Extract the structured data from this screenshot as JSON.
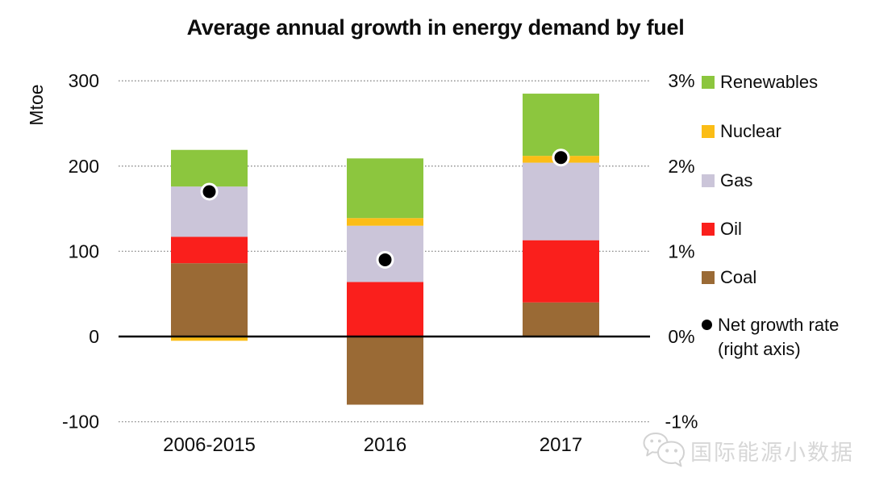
{
  "title": "Average annual growth in energy demand by fuel",
  "watermark": {
    "icon": "wechat-logo",
    "text": "国际能源小数据"
  },
  "chart_data": {
    "type": "bar",
    "subtype": "stacked-column-with-net-growth-points",
    "title": "Average annual growth in energy demand by fuel",
    "categories": [
      "2006-2015",
      "2016",
      "2017"
    ],
    "stack_order_bottom_to_top": [
      "Coal",
      "Oil",
      "Gas",
      "Nuclear",
      "Renewables"
    ],
    "series": [
      {
        "name": "Coal",
        "color": "#9A6A35",
        "values": [
          86,
          -80,
          40
        ]
      },
      {
        "name": "Oil",
        "color": "#FA1F1C",
        "values": [
          31,
          64,
          73
        ]
      },
      {
        "name": "Gas",
        "color": "#CBC5D9",
        "values": [
          59,
          66,
          91
        ]
      },
      {
        "name": "Nuclear",
        "color": "#FBBD16",
        "values": [
          -5,
          9,
          8
        ]
      },
      {
        "name": "Renewables",
        "color": "#8CC63E",
        "values": [
          43,
          70,
          73
        ]
      }
    ],
    "point_series": {
      "name": "Net growth rate (right axis)",
      "color": "#000000",
      "values_percent": [
        1.7,
        0.9,
        2.1
      ]
    },
    "left_axis": {
      "label": "Mtoe",
      "ticks": [
        300,
        200,
        100,
        0,
        -100
      ],
      "min": -100,
      "max": 300
    },
    "right_axis": {
      "ticks": [
        "3%",
        "2%",
        "1%",
        "0%",
        "-1%"
      ],
      "tick_values": [
        3,
        2,
        1,
        0,
        -1
      ],
      "min": -1,
      "max": 3
    },
    "legend": [
      {
        "label": "Renewables",
        "marker": "square",
        "color": "#8CC63E"
      },
      {
        "label": "Nuclear",
        "marker": "square",
        "color": "#FBBD16"
      },
      {
        "label": "Gas",
        "marker": "square",
        "color": "#CBC5D9"
      },
      {
        "label": "Oil",
        "marker": "square",
        "color": "#FA1F1C"
      },
      {
        "label": "Coal",
        "marker": "square",
        "color": "#9A6A35"
      },
      {
        "label": "Net growth rate",
        "label2": "(right axis)",
        "marker": "circle",
        "color": "#000000"
      }
    ],
    "legend_position": "right",
    "grid": "horizontal-dotted",
    "zero_line": "solid-black"
  }
}
